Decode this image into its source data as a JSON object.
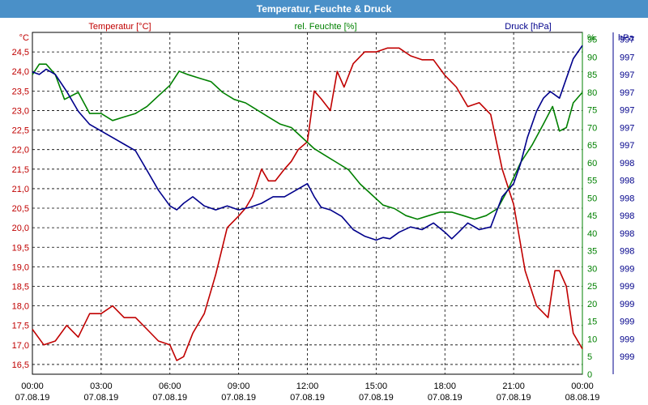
{
  "window": {
    "title": "Temperatur, Feuchte & Druck"
  },
  "chart_data": {
    "type": "line",
    "title": "Temperatur, Feuchte & Druck",
    "x_ticks": [
      {
        "time": "00:00",
        "date": "07.08.19"
      },
      {
        "time": "03:00",
        "date": "07.08.19"
      },
      {
        "time": "06:00",
        "date": "07.08.19"
      },
      {
        "time": "09:00",
        "date": "07.08.19"
      },
      {
        "time": "12:00",
        "date": "07.08.19"
      },
      {
        "time": "15:00",
        "date": "07.08.19"
      },
      {
        "time": "18:00",
        "date": "07.08.19"
      },
      {
        "time": "21:00",
        "date": "07.08.19"
      },
      {
        "time": "00:00",
        "date": "08.08.19"
      }
    ],
    "x_range_hours": [
      0,
      24
    ],
    "grid": true,
    "axes": {
      "left": {
        "label": "Temperatur [°C]",
        "unit": "°C",
        "range": [
          16.25,
          25.0
        ],
        "ticks": [
          "16,5",
          "17,0",
          "17,5",
          "18,0",
          "18,5",
          "19,0",
          "19,5",
          "20,0",
          "20,5",
          "21,0",
          "21,5",
          "22,0",
          "22,5",
          "23,0",
          "23,5",
          "24,0",
          "24,5"
        ],
        "color": "#c00000"
      },
      "middle": {
        "label": "rel. Feuchte [%]",
        "unit": "%",
        "range": [
          0,
          97
        ],
        "ticks": [
          "0",
          "5",
          "10",
          "15",
          "20",
          "25",
          "30",
          "35",
          "40",
          "45",
          "50",
          "55",
          "60",
          "65",
          "70",
          "75",
          "80",
          "85",
          "90",
          "95"
        ],
        "color": "#008000"
      },
      "right": {
        "label": "Druck [hPa]",
        "unit": "hPa",
        "range": [
          996.7,
          999.3
        ],
        "ticks": [
          "997",
          "997",
          "997",
          "997",
          "997",
          "997",
          "997",
          "998",
          "998",
          "998",
          "998",
          "998",
          "998",
          "999",
          "999",
          "999",
          "999",
          "999",
          "999"
        ],
        "color": "#00008b"
      }
    },
    "series": [
      {
        "name": "Temperatur [°C]",
        "axis": "left",
        "color": "#c00000",
        "x": [
          0.0,
          0.25,
          0.5,
          1.0,
          1.5,
          2.0,
          2.5,
          3.0,
          3.5,
          4.0,
          4.5,
          5.0,
          5.5,
          6.0,
          6.3,
          6.6,
          7.0,
          7.5,
          8.0,
          8.5,
          9.0,
          9.3,
          9.6,
          10.0,
          10.3,
          10.6,
          11.0,
          11.3,
          11.6,
          12.0,
          12.3,
          12.6,
          13.0,
          13.3,
          13.6,
          14.0,
          14.5,
          15.0,
          15.5,
          16.0,
          16.5,
          17.0,
          17.5,
          18.0,
          18.5,
          19.0,
          19.5,
          20.0,
          20.5,
          21.0,
          21.5,
          22.0,
          22.5,
          22.8,
          23.0,
          23.3,
          23.6,
          24.0
        ],
        "values": [
          17.4,
          17.2,
          17.0,
          17.1,
          17.5,
          17.2,
          17.8,
          17.8,
          18.0,
          17.7,
          17.7,
          17.4,
          17.1,
          17.0,
          16.6,
          16.7,
          17.3,
          17.8,
          18.8,
          20.0,
          20.3,
          20.5,
          20.8,
          21.5,
          21.2,
          21.2,
          21.5,
          21.7,
          22.0,
          22.2,
          23.5,
          23.3,
          23.0,
          24.0,
          23.6,
          24.2,
          24.5,
          24.5,
          24.6,
          24.6,
          24.4,
          24.3,
          24.3,
          23.9,
          23.6,
          23.1,
          23.2,
          22.9,
          21.5,
          20.6,
          18.9,
          18.0,
          17.7,
          18.9,
          18.9,
          18.5,
          17.3,
          16.9
        ]
      },
      {
        "name": "rel. Feuchte [%]",
        "axis": "middle",
        "color": "#008000",
        "x": [
          0.0,
          0.3,
          0.6,
          1.0,
          1.4,
          2.0,
          2.5,
          3.0,
          3.5,
          4.0,
          4.5,
          5.0,
          5.5,
          6.0,
          6.4,
          6.8,
          7.3,
          7.8,
          8.3,
          8.8,
          9.3,
          9.8,
          10.3,
          10.8,
          11.3,
          11.8,
          12.3,
          12.8,
          13.3,
          13.8,
          14.3,
          14.8,
          15.3,
          15.8,
          16.3,
          16.8,
          17.3,
          17.8,
          18.3,
          18.8,
          19.3,
          19.8,
          20.3,
          20.8,
          21.3,
          21.8,
          22.3,
          22.7,
          23.0,
          23.3,
          23.6,
          24.0
        ],
        "values": [
          85,
          88,
          88,
          85,
          78,
          80,
          74,
          74,
          72,
          73,
          74,
          76,
          79,
          82,
          86,
          85,
          84,
          83,
          80,
          78,
          77,
          75,
          73,
          71,
          70,
          67,
          64,
          62,
          60,
          58,
          54,
          51,
          48,
          47,
          45,
          44,
          45,
          46,
          46,
          45,
          44,
          45,
          47,
          53,
          60,
          65,
          71,
          76,
          69,
          70,
          77,
          80
        ]
      },
      {
        "name": "Druck [hPa]",
        "axis": "right",
        "color": "#00008b",
        "x": [
          0.0,
          0.3,
          0.6,
          1.0,
          1.5,
          2.0,
          2.5,
          3.0,
          3.5,
          4.0,
          4.5,
          5.0,
          5.5,
          6.0,
          6.3,
          6.6,
          7.0,
          7.5,
          8.0,
          8.5,
          9.0,
          9.5,
          10.0,
          10.5,
          11.0,
          11.5,
          12.0,
          12.3,
          12.6,
          13.0,
          13.5,
          14.0,
          14.5,
          15.0,
          15.3,
          15.6,
          16.0,
          16.5,
          17.0,
          17.5,
          18.0,
          18.3,
          18.6,
          19.0,
          19.5,
          20.0,
          20.5,
          21.0,
          21.3,
          21.6,
          22.0,
          22.3,
          22.6,
          23.0,
          23.3,
          23.6,
          24.0
        ],
        "values": [
          999.0,
          998.98,
          999.02,
          998.98,
          998.85,
          998.7,
          998.6,
          998.55,
          998.5,
          998.45,
          998.4,
          998.25,
          998.1,
          997.98,
          997.95,
          998.0,
          998.05,
          997.98,
          997.95,
          997.98,
          997.95,
          997.97,
          998.0,
          998.05,
          998.05,
          998.1,
          998.15,
          998.05,
          997.97,
          997.95,
          997.9,
          997.8,
          997.75,
          997.72,
          997.74,
          997.73,
          997.78,
          997.82,
          997.8,
          997.85,
          997.78,
          997.73,
          997.78,
          997.85,
          997.8,
          997.82,
          998.05,
          998.15,
          998.3,
          998.5,
          998.7,
          998.8,
          998.85,
          998.8,
          998.95,
          999.1,
          999.2
        ]
      }
    ]
  }
}
